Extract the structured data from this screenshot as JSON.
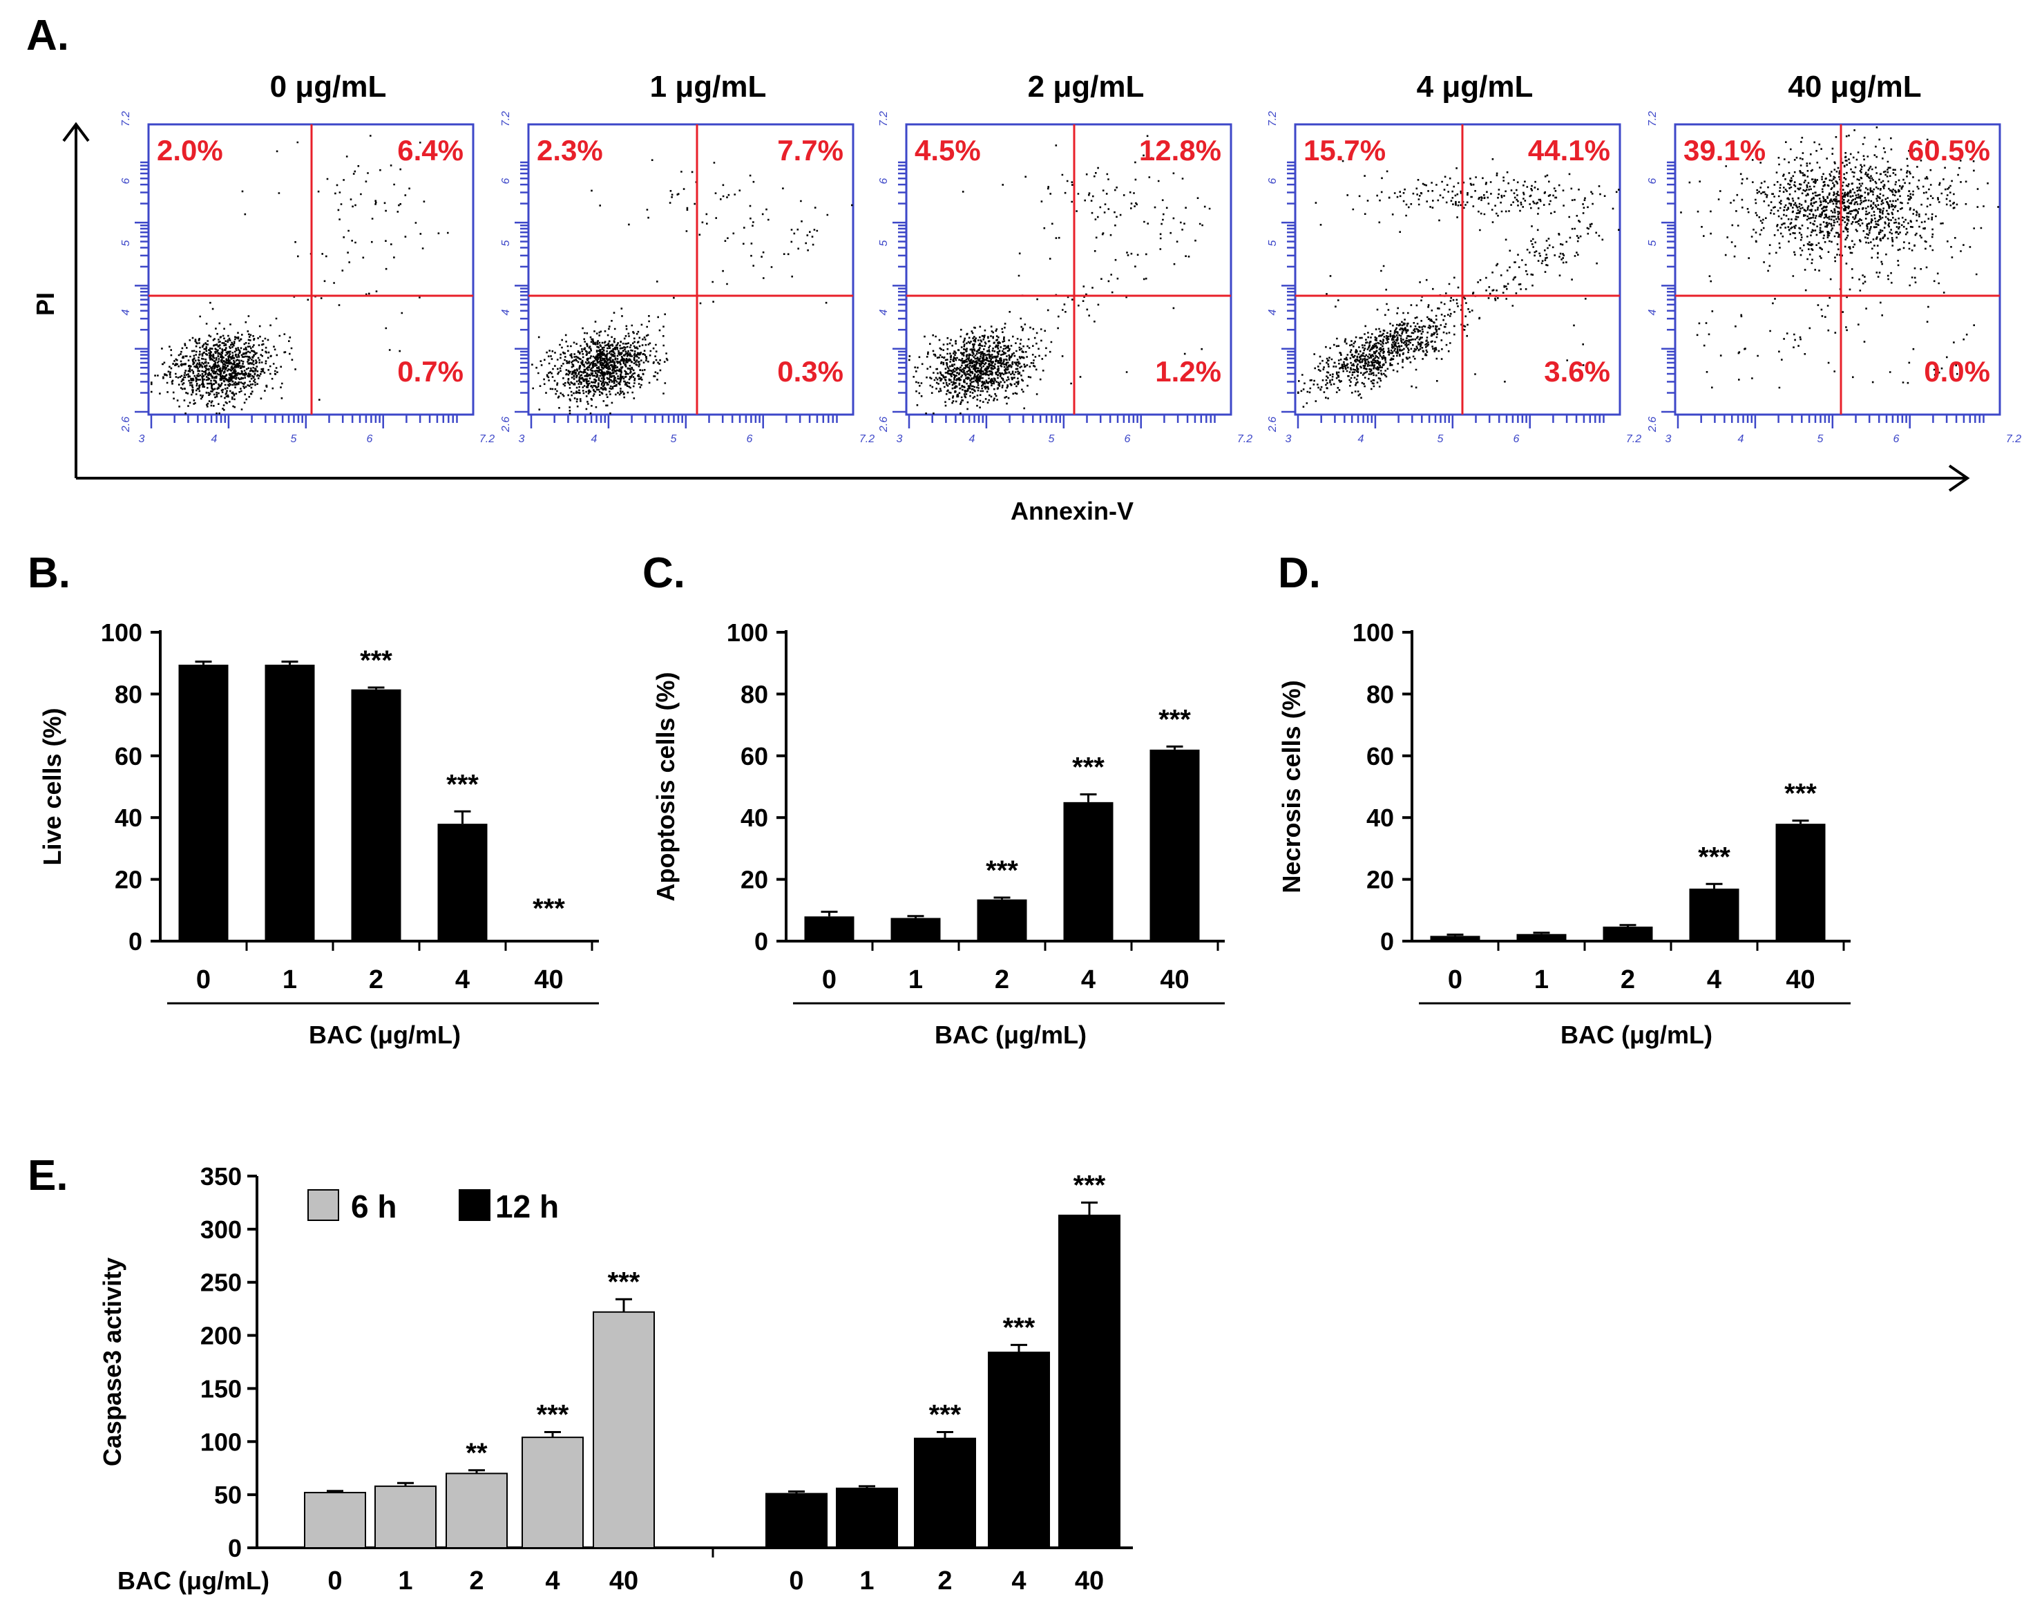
{
  "figure_labels": {
    "a": "A.",
    "b": "B.",
    "c": "C.",
    "d": "D.",
    "e": "E."
  },
  "chart_data": [
    {
      "type": "scatter",
      "panel": "A.",
      "xlabel": "Annexin-V",
      "ylabel": "PI",
      "colors": {
        "frame": "#3d47c8",
        "gate": "#e8202a",
        "quadrant_text": "#e8202a",
        "points": "#000000"
      },
      "axis_tick_labels": {
        "x": [
          "3",
          "4",
          "5",
          "6",
          "7.2"
        ],
        "y": [
          "2.6",
          "4",
          "5",
          "6",
          "7.2"
        ]
      },
      "plots": [
        {
          "title": "0 μg/mL",
          "ul": "2.0%",
          "ur": "6.4%",
          "lr": "0.7%"
        },
        {
          "title": "1 μg/mL",
          "ul": "2.3%",
          "ur": "7.7%",
          "lr": "0.3%"
        },
        {
          "title": "2 μg/mL",
          "ul": "4.5%",
          "ur": "12.8%",
          "lr": "1.2%"
        },
        {
          "title": "4 μg/mL",
          "ul": "15.7%",
          "ur": "44.1%",
          "lr": "3.6%"
        },
        {
          "title": "40 μg/mL",
          "ul": "39.1%",
          "ur": "60.5%",
          "lr": "0.0%"
        }
      ]
    },
    {
      "type": "bar",
      "panel": "B.",
      "categories": [
        "0",
        "1",
        "2",
        "4",
        "40"
      ],
      "values": [
        89.5,
        89.5,
        81.5,
        38,
        0
      ],
      "errors": [
        1,
        1,
        0.6,
        4,
        0
      ],
      "significance": [
        "",
        "",
        "***",
        "***",
        "***"
      ],
      "ylabel": "Live cells (%)",
      "xlabel": "BAC (μg/mL)",
      "ylim": [
        0,
        100
      ],
      "yticks": [
        "0",
        "20",
        "40",
        "60",
        "80",
        "100"
      ]
    },
    {
      "type": "bar",
      "panel": "C.",
      "categories": [
        "0",
        "1",
        "2",
        "4",
        "40"
      ],
      "values": [
        8,
        7.5,
        13.5,
        45,
        62
      ],
      "errors": [
        1.5,
        0.6,
        0.6,
        2.5,
        1
      ],
      "significance": [
        "",
        "",
        "***",
        "***",
        "***"
      ],
      "ylabel": "Apoptosis cells (%)",
      "xlabel": "BAC (μg/mL)",
      "ylim": [
        0,
        100
      ],
      "yticks": [
        "0",
        "20",
        "40",
        "60",
        "80",
        "100"
      ]
    },
    {
      "type": "bar",
      "panel": "D.",
      "categories": [
        "0",
        "1",
        "2",
        "4",
        "40"
      ],
      "values": [
        1.7,
        2.3,
        4.7,
        17,
        38
      ],
      "errors": [
        0.4,
        0.4,
        0.5,
        1.5,
        1
      ],
      "significance": [
        "",
        "",
        "",
        "***",
        "***"
      ],
      "ylabel": "Necrosis cells (%)",
      "xlabel": "BAC (μg/mL)",
      "ylim": [
        0,
        100
      ],
      "yticks": [
        "0",
        "20",
        "40",
        "60",
        "80",
        "100"
      ]
    },
    {
      "type": "bar",
      "panel": "E.",
      "categories": [
        "0",
        "1",
        "2",
        "4",
        "40"
      ],
      "xlabel": "BAC (μg/mL)",
      "ylabel": "Caspase3 activity",
      "ylim": [
        0,
        350
      ],
      "yticks": [
        "0",
        "50",
        "100",
        "150",
        "200",
        "250",
        "300",
        "350"
      ],
      "series": [
        {
          "name": "6 h",
          "color": "#c0c0c0",
          "values": [
            52,
            58,
            70,
            104,
            222
          ],
          "errors": [
            1.5,
            3,
            3,
            5,
            12
          ],
          "significance": [
            "",
            "",
            "**",
            "***",
            "***"
          ]
        },
        {
          "name": "12 h",
          "color": "#000000",
          "values": [
            51,
            56,
            103,
            184,
            313
          ],
          "errors": [
            2,
            2,
            6,
            7,
            12
          ],
          "significance": [
            "",
            "",
            "***",
            "***",
            "***"
          ]
        }
      ]
    }
  ]
}
